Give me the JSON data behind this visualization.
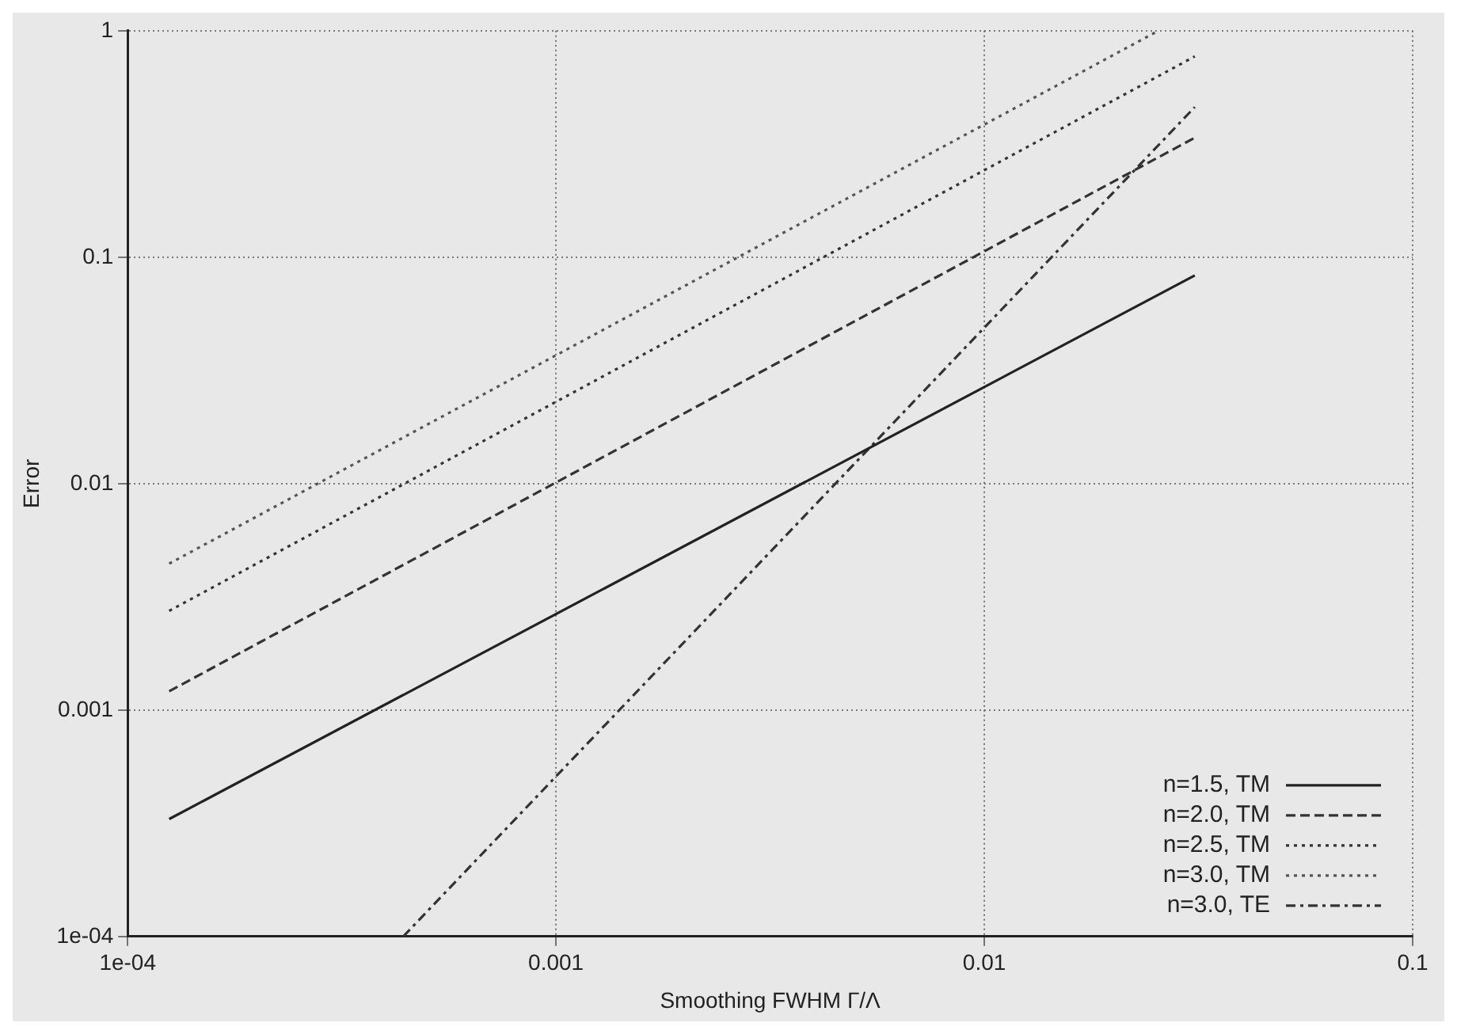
{
  "chart_data": {
    "type": "line",
    "xlabel": "Smoothing FWHM Γ/Λ",
    "ylabel": "Error",
    "log": "xy",
    "grid": true,
    "legend": "bottom right",
    "marker": "none",
    "xlim": [
      0.0001,
      0.1
    ],
    "xticks": [
      {
        "value": 0.0001,
        "label": "1e-04"
      },
      0.001,
      0.01,
      0.1
    ],
    "ylim": [
      0.0001,
      1
    ],
    "yticks": [
      {
        "value": 0.0001,
        "label": "1e-04"
      },
      0.001,
      0.01,
      0.1,
      1
    ],
    "series": [
      {
        "name": "n=1.5, TM",
        "color": "#222222",
        "line_style": "solid",
        "x": [
          0.000125,
          0.031
        ],
        "values": [
          0.00033,
          0.083
        ]
      },
      {
        "name": "n=2.0, TM",
        "color": "#333333",
        "line_style": "dashed",
        "x": [
          0.000125,
          0.031
        ],
        "values": [
          0.00121,
          0.337
        ]
      },
      {
        "name": "n=2.5, TM",
        "color": "#333333",
        "line_style": "dotted",
        "x": [
          0.000125,
          0.031
        ],
        "values": [
          0.00274,
          0.77
        ]
      },
      {
        "name": "n=3.0, TM",
        "color": "#555555",
        "line_style": "dotted",
        "x": [
          0.000125,
          0.0255
        ],
        "values": [
          0.00443,
          1
        ]
      },
      {
        "name": "n=3.0, TE",
        "color": "#333333",
        "line_style": "dashdot",
        "x": [
          0.00044,
          0.031
        ],
        "values": [
          0.0001,
          0.46
        ]
      }
    ]
  }
}
